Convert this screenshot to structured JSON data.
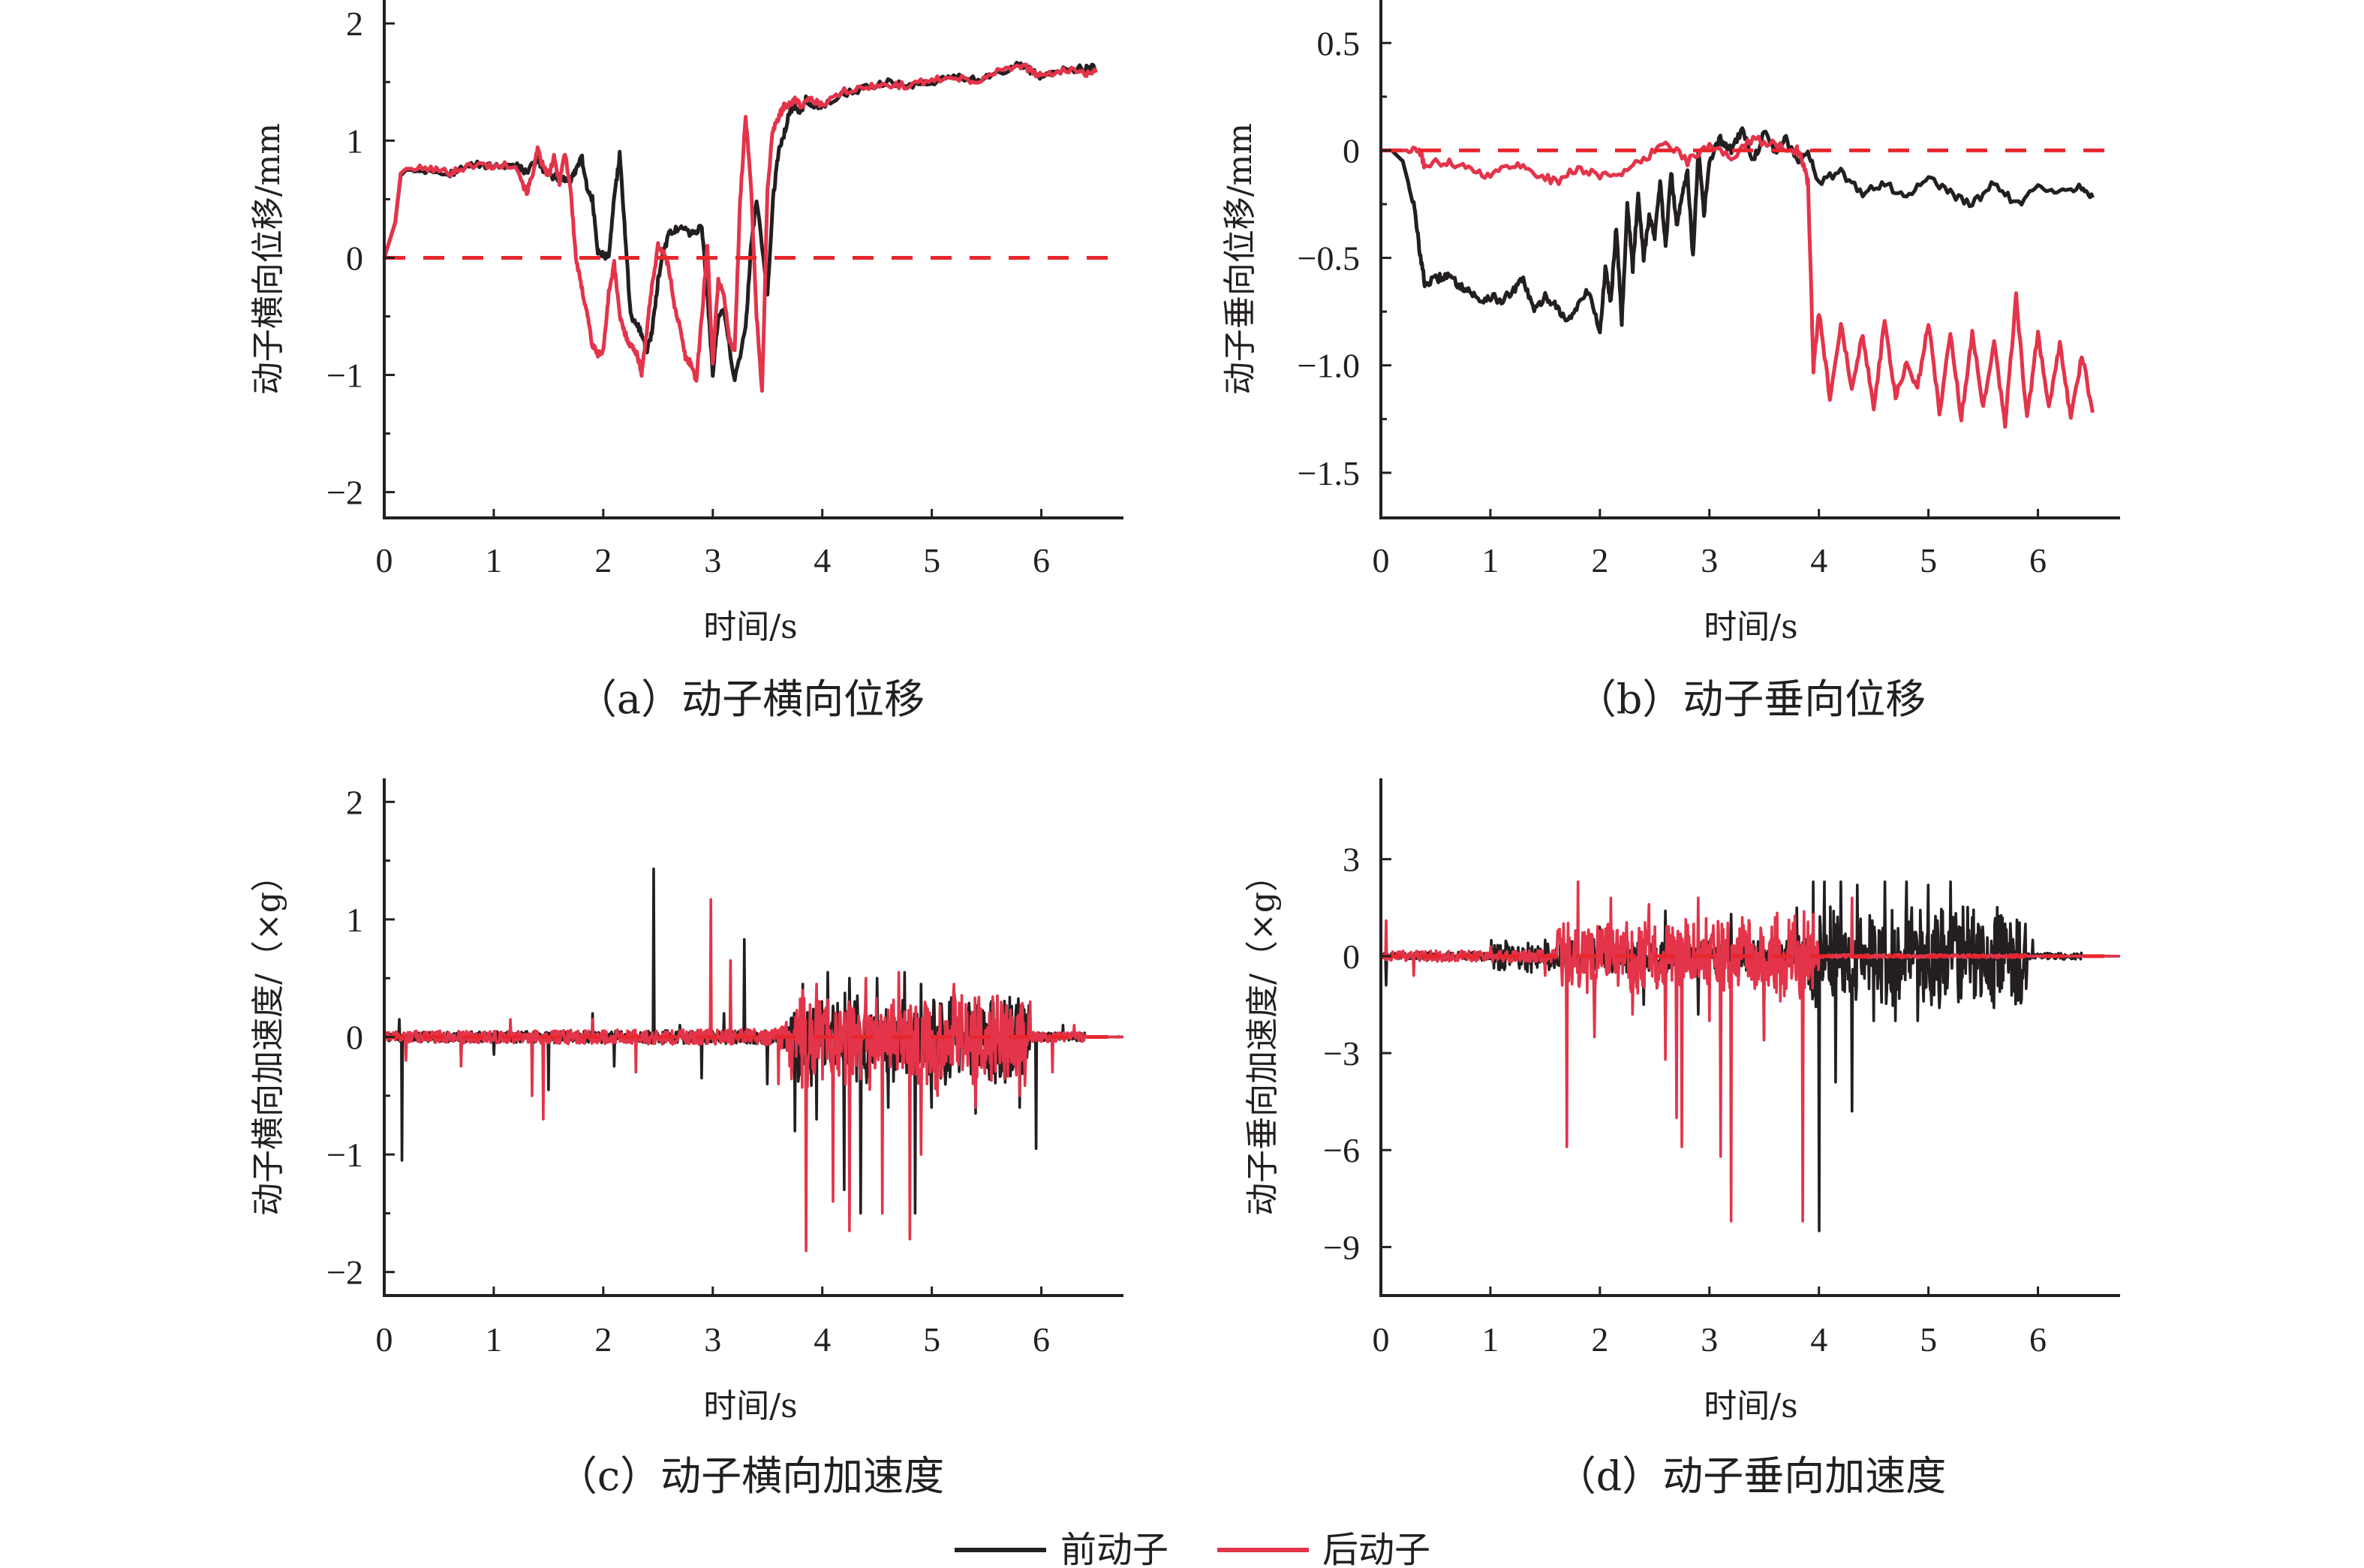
{
  "colors": {
    "front": "#231f20",
    "rear": "#e3344a",
    "zero_line": "#e8262d",
    "axis": "#231f20"
  },
  "legend": {
    "items": [
      {
        "label": "前动子",
        "color": "#231f20"
      },
      {
        "label": "后动子",
        "color": "#e3344a"
      }
    ],
    "placement": "bottom-center"
  },
  "chart_data": [
    {
      "id": "a",
      "type": "line",
      "caption": "（a）动子横向位移",
      "xlabel": "时间/s",
      "ylabel": "动子横向位移/mm",
      "xlim": [
        0,
        6.75
      ],
      "ylim": [
        -2.22,
        2.2
      ],
      "xticks": [
        0,
        1,
        2,
        3,
        4,
        5,
        6
      ],
      "xtick_labels": [
        "0",
        "1",
        "2",
        "3",
        "4",
        "5",
        "6"
      ],
      "yticks": [
        -2,
        -1,
        0,
        1,
        2
      ],
      "ytick_labels": [
        "−2",
        "−1",
        "0",
        "1",
        "2"
      ],
      "yminor": [
        -1.5,
        -0.5,
        0.5,
        1.5
      ],
      "reference_line": 0,
      "series": [
        {
          "name": "前动子",
          "x": [
            0,
            0.1,
            0.15,
            0.2,
            0.4,
            0.6,
            0.7,
            0.85,
            1.0,
            1.2,
            1.3,
            1.4,
            1.45,
            1.5,
            1.6,
            1.7,
            1.75,
            1.8,
            1.85,
            1.9,
            1.95,
            2.0,
            2.05,
            2.1,
            2.15,
            2.2,
            2.25,
            2.3,
            2.35,
            2.4,
            2.45,
            2.5,
            2.55,
            2.6,
            2.7,
            2.8,
            2.9,
            2.95,
            3.0,
            3.05,
            3.1,
            3.2,
            3.3,
            3.35,
            3.4,
            3.5,
            3.55,
            3.6,
            3.65,
            3.7,
            3.75,
            3.8,
            3.85,
            3.9,
            4.0,
            4.2,
            4.4,
            4.6,
            4.8,
            5.0,
            5.2,
            5.4,
            5.6,
            5.8,
            5.9,
            6.0,
            6.2,
            6.4,
            6.5
          ],
          "y": [
            0,
            0.3,
            0.7,
            0.75,
            0.75,
            0.72,
            0.76,
            0.8,
            0.78,
            0.8,
            0.72,
            0.85,
            0.75,
            0.7,
            0.68,
            0.66,
            0.75,
            0.88,
            0.6,
            0.5,
            0.05,
            0.02,
            0.0,
            0.5,
            0.88,
            0.2,
            -0.5,
            -0.55,
            -0.65,
            -0.8,
            -0.6,
            -0.2,
            0.05,
            0.2,
            0.27,
            0.2,
            0.27,
            -0.3,
            -1.0,
            -0.5,
            -0.45,
            -1.05,
            -0.6,
            0.1,
            0.5,
            -0.3,
            0.5,
            0.9,
            1.05,
            1.25,
            1.3,
            1.25,
            1.35,
            1.3,
            1.3,
            1.4,
            1.45,
            1.5,
            1.47,
            1.5,
            1.55,
            1.52,
            1.58,
            1.65,
            1.6,
            1.55,
            1.6,
            1.62,
            1.62
          ]
        },
        {
          "name": "后动子",
          "x": [
            0,
            0.1,
            0.15,
            0.2,
            0.4,
            0.6,
            0.7,
            0.85,
            1.0,
            1.2,
            1.3,
            1.35,
            1.4,
            1.45,
            1.5,
            1.55,
            1.6,
            1.65,
            1.7,
            1.75,
            1.8,
            1.85,
            1.9,
            1.95,
            2.0,
            2.05,
            2.1,
            2.15,
            2.2,
            2.25,
            2.3,
            2.35,
            2.4,
            2.45,
            2.5,
            2.55,
            2.6,
            2.65,
            2.7,
            2.75,
            2.8,
            2.85,
            2.9,
            2.95,
            3.0,
            3.05,
            3.1,
            3.15,
            3.2,
            3.25,
            3.3,
            3.35,
            3.4,
            3.45,
            3.5,
            3.55,
            3.6,
            3.65,
            3.7,
            3.75,
            3.8,
            3.9,
            4.0,
            4.2,
            4.4,
            4.6,
            4.8,
            5.0,
            5.2,
            5.4,
            5.6,
            5.8,
            5.9,
            6.0,
            6.2,
            6.4,
            6.5
          ],
          "y": [
            0,
            0.3,
            0.72,
            0.76,
            0.76,
            0.73,
            0.76,
            0.8,
            0.78,
            0.8,
            0.55,
            0.7,
            0.92,
            0.78,
            0.7,
            0.85,
            0.65,
            0.9,
            0.6,
            0.0,
            -0.25,
            -0.45,
            -0.75,
            -0.82,
            -0.8,
            -0.3,
            -0.05,
            -0.5,
            -0.65,
            -0.75,
            -0.8,
            -0.98,
            -0.6,
            -0.2,
            0.1,
            0.05,
            -0.1,
            -0.4,
            -0.6,
            -0.85,
            -0.9,
            -1.05,
            -0.5,
            0.1,
            -0.9,
            -0.2,
            -0.3,
            -0.7,
            -0.8,
            0.5,
            1.2,
            0.6,
            -0.5,
            -1.15,
            0.6,
            1.1,
            1.2,
            1.3,
            1.3,
            1.35,
            1.3,
            1.35,
            1.3,
            1.42,
            1.45,
            1.48,
            1.47,
            1.52,
            1.55,
            1.5,
            1.6,
            1.65,
            1.6,
            1.55,
            1.6,
            1.58,
            1.58
          ]
        }
      ]
    },
    {
      "id": "b",
      "type": "line",
      "caption": "（b）动子垂向位移",
      "xlabel": "时间/s",
      "ylabel": "动子垂向位移/mm",
      "xlim": [
        0,
        6.75
      ],
      "ylim": [
        -1.71,
        0.7
      ],
      "xticks": [
        0,
        1,
        2,
        3,
        4,
        5,
        6
      ],
      "xtick_labels": [
        "0",
        "1",
        "2",
        "3",
        "4",
        "5",
        "6"
      ],
      "yticks": [
        -1.5,
        -1.0,
        -0.5,
        0,
        0.5
      ],
      "ytick_labels": [
        "−1.5",
        "−1.0",
        "−0.5",
        "0",
        "0.5"
      ],
      "yminor": [
        -1.25,
        -0.75,
        -0.25,
        0.25
      ],
      "reference_line": 0,
      "series": [
        {
          "name": "前动子",
          "x": [
            0,
            0.1,
            0.2,
            0.3,
            0.35,
            0.4,
            0.5,
            0.6,
            0.7,
            0.8,
            0.9,
            1.0,
            1.1,
            1.2,
            1.3,
            1.4,
            1.5,
            1.6,
            1.7,
            1.8,
            1.9,
            2.0,
            2.05,
            2.1,
            2.15,
            2.2,
            2.25,
            2.3,
            2.35,
            2.4,
            2.45,
            2.5,
            2.55,
            2.6,
            2.65,
            2.7,
            2.75,
            2.8,
            2.85,
            2.9,
            2.95,
            3.0,
            3.1,
            3.2,
            3.3,
            3.4,
            3.5,
            3.6,
            3.7,
            3.8,
            3.9,
            4.0,
            4.2,
            4.4,
            4.6,
            4.8,
            5.0,
            5.2,
            5.4,
            5.6,
            5.8,
            6.0,
            6.2,
            6.4,
            6.5
          ],
          "y": [
            0,
            0,
            -0.05,
            -0.25,
            -0.45,
            -0.62,
            -0.6,
            -0.58,
            -0.62,
            -0.65,
            -0.7,
            -0.68,
            -0.7,
            -0.66,
            -0.6,
            -0.75,
            -0.68,
            -0.72,
            -0.8,
            -0.72,
            -0.65,
            -0.85,
            -0.55,
            -0.7,
            -0.35,
            -0.8,
            -0.25,
            -0.55,
            -0.2,
            -0.5,
            -0.3,
            -0.4,
            -0.15,
            -0.45,
            -0.1,
            -0.35,
            -0.2,
            -0.1,
            -0.5,
            -0.0,
            -0.3,
            -0.05,
            0.05,
            -0.0,
            0.1,
            -0.05,
            0.08,
            0.0,
            0.05,
            -0.05,
            0.0,
            -0.15,
            -0.1,
            -0.2,
            -0.15,
            -0.22,
            -0.12,
            -0.2,
            -0.25,
            -0.15,
            -0.25,
            -0.18,
            -0.2,
            -0.17,
            -0.22
          ]
        },
        {
          "name": "后动子",
          "x": [
            0,
            0.2,
            0.35,
            0.4,
            0.6,
            0.8,
            1.0,
            1.2,
            1.4,
            1.6,
            1.8,
            2.0,
            2.2,
            2.4,
            2.6,
            2.8,
            3.0,
            3.2,
            3.4,
            3.6,
            3.8,
            3.85,
            3.9,
            3.95,
            4.0,
            4.1,
            4.2,
            4.3,
            4.4,
            4.5,
            4.6,
            4.7,
            4.8,
            4.9,
            5.0,
            5.1,
            5.2,
            5.3,
            5.4,
            5.5,
            5.6,
            5.7,
            5.8,
            5.9,
            6.0,
            6.1,
            6.2,
            6.3,
            6.4,
            6.5
          ],
          "y": [
            0,
            0,
            0,
            -0.07,
            -0.05,
            -0.08,
            -0.12,
            -0.06,
            -0.1,
            -0.15,
            -0.08,
            -0.12,
            -0.1,
            -0.05,
            0.05,
            -0.05,
            0.02,
            -0.03,
            0.05,
            0.03,
            0.0,
            -0.05,
            -0.15,
            -1.02,
            -0.75,
            -1.15,
            -0.8,
            -1.1,
            -0.85,
            -1.2,
            -0.8,
            -1.15,
            -1.0,
            -1.1,
            -0.8,
            -1.22,
            -0.85,
            -1.25,
            -0.85,
            -1.2,
            -0.9,
            -1.28,
            -0.68,
            -1.25,
            -0.85,
            -1.2,
            -0.9,
            -1.25,
            -0.95,
            -1.22
          ]
        }
      ]
    },
    {
      "id": "c",
      "type": "line",
      "caption": "（c）动子横向加速度",
      "xlabel": "时间/s",
      "ylabel": "动子横向加速度/（×g）",
      "xlim": [
        0,
        6.75
      ],
      "ylim": [
        -2.2,
        2.2
      ],
      "xticks": [
        0,
        1,
        2,
        3,
        4,
        5,
        6
      ],
      "xtick_labels": [
        "0",
        "1",
        "2",
        "3",
        "4",
        "5",
        "6"
      ],
      "yticks": [
        -2,
        -1,
        0,
        1,
        2
      ],
      "ytick_labels": [
        "−2",
        "−1",
        "0",
        "1",
        "2"
      ],
      "yminor": [
        -1.5,
        -0.5,
        0.5,
        1.5
      ],
      "reference_line": 0,
      "series": [
        {
          "name": "前动子",
          "peaks_t": [
            0.14,
            0.16,
            0.7,
            1.0,
            1.5,
            1.9,
            2.1,
            2.46,
            2.7,
            2.9,
            3.1,
            3.29,
            3.5,
            3.75,
            3.82,
            3.95,
            4.05,
            4.2,
            4.25,
            4.35,
            4.5,
            4.6,
            4.75,
            4.85,
            4.9,
            5.0,
            5.2,
            5.4,
            5.6,
            5.8,
            5.95,
            6.2
          ],
          "peaks_v": [
            0.15,
            -1.05,
            -0.2,
            -0.15,
            -0.45,
            0.2,
            -0.25,
            1.43,
            0.1,
            -0.35,
            0.2,
            0.83,
            -0.4,
            -0.8,
            0.45,
            -0.7,
            0.55,
            -1.3,
            0.5,
            -1.5,
            0.5,
            -0.6,
            0.55,
            -1.5,
            0.45,
            -0.6,
            0.4,
            -0.65,
            0.35,
            -0.6,
            -0.95,
            0.1
          ],
          "noise_amp": 0.12,
          "end_t": 6.75
        },
        {
          "name": "后动子",
          "peaks_t": [
            0.2,
            0.7,
            1.15,
            1.35,
            1.45,
            1.9,
            2.3,
            2.98,
            3.16,
            3.6,
            3.82,
            3.85,
            3.95,
            4.1,
            4.25,
            4.4,
            4.55,
            4.7,
            4.8,
            4.9,
            5.05,
            5.2,
            5.4,
            5.6,
            5.8,
            5.9,
            6.1,
            6.3
          ],
          "peaks_v": [
            -0.2,
            -0.25,
            0.15,
            -0.5,
            -0.7,
            0.15,
            -0.3,
            1.17,
            0.65,
            -0.4,
            0.4,
            -1.82,
            0.45,
            -1.4,
            -1.65,
            0.5,
            -1.5,
            0.55,
            -1.72,
            -1.0,
            -0.5,
            0.45,
            -0.6,
            0.35,
            -0.5,
            0.3,
            -0.3,
            0.1
          ],
          "noise_amp": 0.14,
          "end_t": 6.75
        }
      ]
    },
    {
      "id": "d",
      "type": "line",
      "caption": "（d）动子垂向加速度",
      "xlabel": "时间/s",
      "ylabel": "动子垂向加速度/（×g）",
      "xlim": [
        0,
        6.75
      ],
      "ylim": [
        -10.5,
        5.5
      ],
      "xticks": [
        0,
        1,
        2,
        3,
        4,
        5,
        6
      ],
      "xtick_labels": [
        "0",
        "1",
        "2",
        "3",
        "4",
        "5",
        "6"
      ],
      "yticks": [
        -9,
        -6,
        -3,
        0,
        3
      ],
      "ytick_labels": [
        "−9",
        "−6",
        "−3",
        "0",
        "3"
      ],
      "yminor": [],
      "reference_line": 0,
      "series": [
        {
          "name": "前动子",
          "peaks_t": [
            0.05,
            1.5,
            2.0,
            2.4,
            2.6,
            2.9,
            3.2,
            3.5,
            3.8,
            3.95,
            4.0,
            4.05,
            4.15,
            4.2,
            4.3,
            4.35,
            4.5,
            4.6,
            4.7,
            4.8,
            4.9,
            5.0,
            5.1,
            5.2,
            5.3,
            5.4,
            5.6,
            5.7,
            5.8,
            5.95
          ],
          "peaks_v": [
            -0.9,
            0.5,
            0.9,
            -1.5,
            1.4,
            -1.8,
            1.3,
            -2.5,
            1.5,
            2.3,
            -8.5,
            2.3,
            -3.9,
            2.3,
            -4.8,
            2.2,
            -2.0,
            2.3,
            -2.0,
            2.3,
            -2.0,
            2.2,
            -1.6,
            2.3,
            -1.3,
            1.2,
            -1.6,
            1.0,
            -0.9,
            0.5
          ],
          "noise_amp": 0.35,
          "end_t": 6.75
        },
        {
          "name": "后动子",
          "peaks_t": [
            0.05,
            0.3,
            1.0,
            1.5,
            1.7,
            1.8,
            1.95,
            2.1,
            2.3,
            2.45,
            2.6,
            2.7,
            2.75,
            2.9,
            3.0,
            3.1,
            3.2,
            3.3,
            3.5,
            3.6,
            3.7,
            3.85,
            3.95,
            4.3
          ],
          "peaks_v": [
            1.1,
            -0.6,
            0.3,
            -0.6,
            -5.9,
            2.3,
            -2.5,
            1.8,
            -1.8,
            1.6,
            -3.2,
            -5.0,
            -5.9,
            1.8,
            -2.0,
            -6.2,
            -8.2,
            1.2,
            -2.6,
            1.2,
            -1.0,
            -8.2,
            1.3,
            1.8
          ],
          "noise_amp": 0.45,
          "quiet_after": 4.0,
          "end_t": 6.75
        }
      ]
    }
  ]
}
